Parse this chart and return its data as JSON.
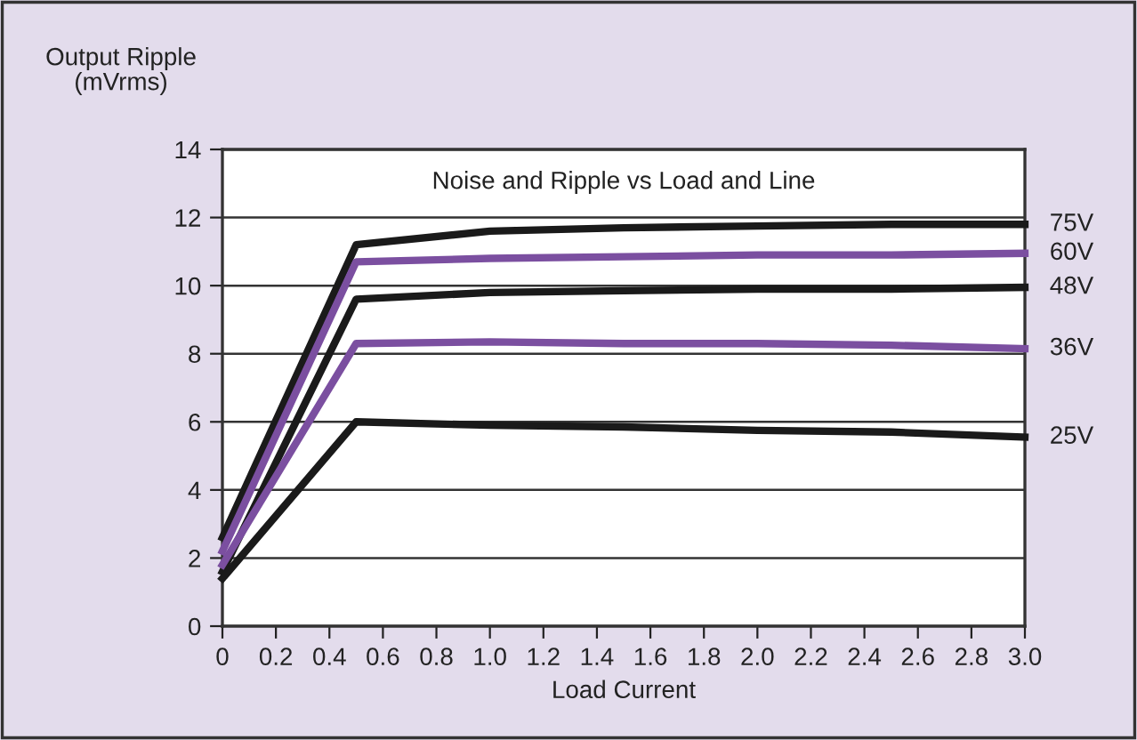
{
  "chart_data": {
    "type": "line",
    "title": "Noise and Ripple vs Load and Line",
    "xlabel": "Load Current",
    "ylabel": "Output Ripple\n(mVrms)",
    "xlim": [
      0,
      3.0
    ],
    "ylim": [
      0,
      14
    ],
    "xticks": [
      {
        "value": 0,
        "label": "0"
      },
      {
        "value": 0.2,
        "label": "0.2"
      },
      {
        "value": 0.4,
        "label": "0.4"
      },
      {
        "value": 0.6,
        "label": "0.6"
      },
      {
        "value": 0.8,
        "label": "0.8"
      },
      {
        "value": 1.0,
        "label": "1.0"
      },
      {
        "value": 1.2,
        "label": "1.2"
      },
      {
        "value": 1.4,
        "label": "1.4"
      },
      {
        "value": 1.6,
        "label": "1.6"
      },
      {
        "value": 1.8,
        "label": "1.8"
      },
      {
        "value": 2.0,
        "label": "2.0"
      },
      {
        "value": 2.2,
        "label": "2.2"
      },
      {
        "value": 2.4,
        "label": "2.4"
      },
      {
        "value": 2.6,
        "label": "2.6"
      },
      {
        "value": 2.8,
        "label": "2.8"
      },
      {
        "value": 3.0,
        "label": "3.0"
      }
    ],
    "yticks": [
      0,
      2,
      4,
      6,
      8,
      10,
      12,
      14
    ],
    "grid": "y",
    "marker": "none",
    "line_style": "solid",
    "x": [
      0,
      0.5,
      1.0,
      1.5,
      2.0,
      2.5,
      3.0
    ],
    "series": [
      {
        "name": "75V",
        "color": "#1a1a1a",
        "values": [
          2.6,
          11.2,
          11.6,
          11.7,
          11.75,
          11.8,
          11.8
        ]
      },
      {
        "name": "60V",
        "color": "#7b4fa0",
        "values": [
          2.2,
          10.7,
          10.8,
          10.85,
          10.9,
          10.9,
          10.95
        ]
      },
      {
        "name": "48V",
        "color": "#1a1a1a",
        "values": [
          1.6,
          9.6,
          9.8,
          9.85,
          9.9,
          9.9,
          9.95
        ]
      },
      {
        "name": "36V",
        "color": "#7b4fa0",
        "values": [
          1.8,
          8.3,
          8.35,
          8.3,
          8.3,
          8.25,
          8.15
        ]
      },
      {
        "name": "25V",
        "color": "#1a1a1a",
        "values": [
          1.4,
          6.0,
          5.9,
          5.85,
          5.75,
          5.7,
          5.55
        ]
      }
    ]
  }
}
